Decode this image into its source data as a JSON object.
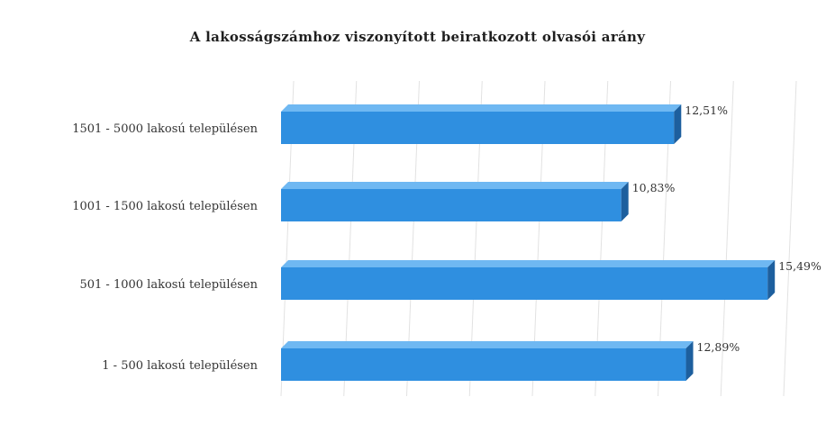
{
  "chart_data": {
    "type": "bar",
    "orientation": "horizontal",
    "title": "A lakosságszámhoz viszonyított beiratkozott olvasói arány",
    "xlabel": "",
    "ylabel": "",
    "categories": [
      "1501 - 5000 lakosú településen",
      "1001 - 1500 lakosú településen",
      "501 - 1000 lakosú településen",
      "1 - 500 lakosú településen"
    ],
    "values": [
      12.51,
      10.83,
      15.49,
      12.89
    ],
    "value_labels": [
      "12,51%",
      "10,83%",
      "15,49%",
      "12,89%"
    ],
    "xlim": [
      0,
      16
    ],
    "grid": true,
    "legend": "none",
    "bar_style": "3d",
    "colors": {
      "bar_front": "#2f8fe0",
      "bar_top": "#6fb8f2",
      "bar_side": "#1d5f9e",
      "grid": "#e2e2e2"
    }
  }
}
